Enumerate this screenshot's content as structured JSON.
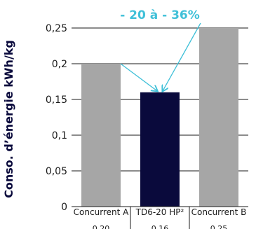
{
  "chart_data": {
    "type": "bar",
    "title": "",
    "xlabel": "",
    "ylabel": "Conso. d’énergie kWh/kg",
    "ylim": [
      0,
      0.25
    ],
    "yticks": [
      "0",
      "0,05",
      "0,1",
      "0,15",
      "0,2",
      "0,25"
    ],
    "grid": true,
    "categories": [
      "Concurrent A",
      "TD6-20 HP²",
      "Concurrent B"
    ],
    "values": [
      0.2,
      0.16,
      0.25
    ],
    "value_labels": [
      "0,20",
      "0,16",
      "0,25"
    ],
    "bar_colors": [
      "#a6a6a6",
      "#0a0a3c",
      "#a6a6a6"
    ],
    "annotation": {
      "text": "- 20 à - 36%",
      "color": "#3fc0d8",
      "points_to": "TD6-20 HP²",
      "from": [
        "Concurrent A",
        "Concurrent B"
      ]
    }
  }
}
